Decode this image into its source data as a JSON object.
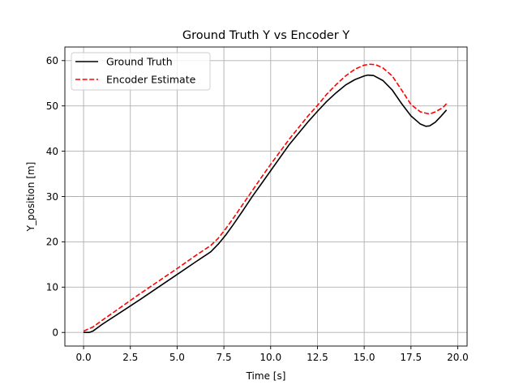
{
  "chart_data": {
    "type": "line",
    "title": "Ground Truth Y vs Encoder Y",
    "xlabel": "Time [s]",
    "ylabel": "Y_position [m]",
    "xlim": [
      -1.0,
      20.5
    ],
    "ylim": [
      -3.0,
      63.0
    ],
    "xticks": [
      0.0,
      2.5,
      5.0,
      7.5,
      10.0,
      12.5,
      15.0,
      17.5,
      20.0
    ],
    "xtick_labels": [
      "0.0",
      "2.5",
      "5.0",
      "7.5",
      "10.0",
      "12.5",
      "15.0",
      "17.5",
      "20.0"
    ],
    "yticks": [
      0,
      10,
      20,
      30,
      40,
      50,
      60
    ],
    "ytick_labels": [
      "0",
      "10",
      "20",
      "30",
      "40",
      "50",
      "60"
    ],
    "grid": true,
    "legend_position": "top-left",
    "series": [
      {
        "name": "Ground Truth",
        "color": "#000000",
        "style": "solid",
        "x": [
          0.0,
          0.3,
          0.5,
          1.0,
          2.0,
          3.0,
          4.0,
          5.0,
          6.0,
          6.8,
          7.2,
          7.6,
          8.0,
          8.5,
          9.0,
          9.5,
          10.0,
          11.0,
          12.0,
          12.5,
          13.0,
          13.5,
          14.0,
          14.5,
          15.0,
          15.2,
          15.5,
          16.0,
          16.5,
          17.0,
          17.5,
          18.0,
          18.3,
          18.5,
          18.8,
          19.1,
          19.4
        ],
        "y": [
          0.0,
          0.0,
          0.3,
          1.8,
          4.5,
          7.2,
          10.0,
          12.8,
          15.6,
          17.8,
          19.5,
          21.5,
          23.8,
          26.8,
          29.9,
          32.8,
          35.7,
          41.5,
          46.5,
          48.8,
          51.0,
          52.9,
          54.6,
          55.8,
          56.6,
          56.8,
          56.7,
          55.6,
          53.5,
          50.5,
          47.8,
          46.0,
          45.5,
          45.6,
          46.4,
          47.7,
          49.1
        ]
      },
      {
        "name": "Encoder Estimate",
        "color": "#ff0000",
        "style": "dashed",
        "x": [
          0.0,
          0.5,
          1.0,
          2.0,
          3.0,
          4.0,
          5.0,
          6.0,
          6.8,
          7.2,
          7.6,
          8.0,
          8.5,
          9.0,
          9.5,
          10.0,
          11.0,
          12.0,
          12.5,
          13.0,
          13.5,
          14.0,
          14.5,
          15.0,
          15.3,
          15.6,
          16.0,
          16.5,
          17.0,
          17.5,
          18.0,
          18.5,
          18.8,
          19.2,
          19.4
        ],
        "y": [
          0.3,
          1.2,
          2.7,
          5.6,
          8.5,
          11.3,
          14.1,
          17.0,
          19.2,
          20.8,
          22.9,
          25.2,
          28.2,
          31.2,
          34.2,
          37.1,
          42.7,
          47.8,
          50.1,
          52.6,
          54.7,
          56.6,
          58.1,
          59.0,
          59.2,
          59.1,
          58.4,
          56.6,
          53.5,
          50.3,
          48.7,
          48.2,
          48.7,
          49.6,
          50.5
        ]
      }
    ]
  }
}
